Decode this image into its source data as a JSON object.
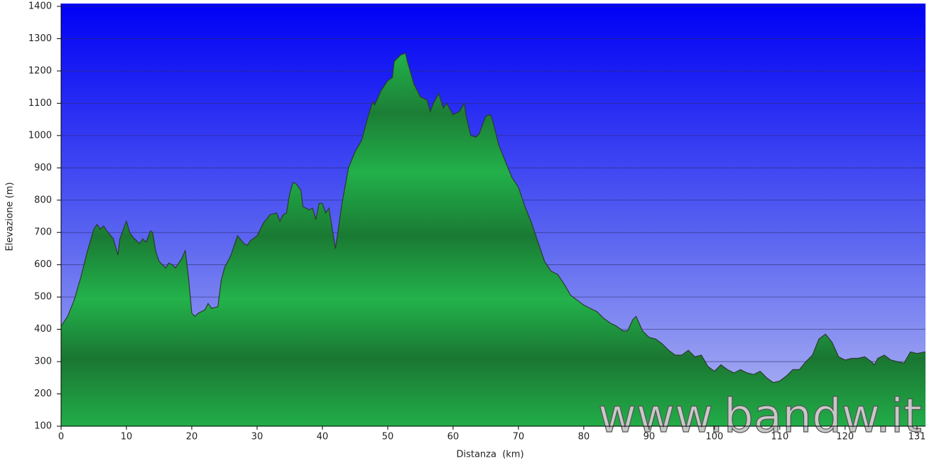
{
  "chart_data": {
    "type": "area",
    "x_label": "Distanza  (km)",
    "y_label": "Elevazione (m)",
    "watermark": "www.bandw.it",
    "xlim": [
      0,
      132.3
    ],
    "ylim": [
      100,
      1400
    ],
    "xticks": [
      0,
      10,
      20,
      30,
      40,
      50,
      60,
      70,
      80,
      90,
      100,
      110,
      120,
      131
    ],
    "yticks": [
      100,
      200,
      300,
      400,
      500,
      600,
      700,
      800,
      900,
      1000,
      1100,
      1200,
      1300,
      1400
    ],
    "grid": true,
    "x": [
      0,
      1,
      2,
      3,
      4,
      5,
      5.5,
      6,
      6.5,
      7,
      8,
      8.7,
      9,
      10,
      10.5,
      11,
      12,
      12.5,
      13,
      13.7,
      14,
      14.5,
      15,
      16,
      16.5,
      17,
      17.5,
      18,
      18.5,
      19,
      19.5,
      20,
      20.5,
      21,
      22,
      22.5,
      23,
      24,
      24.5,
      25,
      26,
      26.5,
      27,
      28,
      28.5,
      29,
      30,
      31,
      32,
      33,
      33.5,
      34,
      34.5,
      35,
      35.5,
      36,
      36.7,
      37,
      38,
      38.5,
      39,
      39.5,
      40,
      40.5,
      41,
      42,
      43,
      44,
      45,
      46,
      47,
      47.7,
      48,
      49,
      50,
      50.7,
      51,
      52,
      52.7,
      53,
      54,
      55,
      56,
      56.5,
      57,
      57.8,
      58.5,
      59,
      60,
      61,
      61.7,
      62,
      62.7,
      63.5,
      64,
      65,
      65.7,
      66,
      67,
      68,
      69,
      70,
      71,
      72,
      73,
      74,
      75,
      76,
      77,
      78,
      79,
      80,
      81,
      82,
      83,
      84,
      85,
      86,
      86.7,
      87.5,
      88,
      89,
      90,
      91,
      92,
      93,
      94,
      95,
      96,
      97,
      98,
      99,
      100,
      101,
      102,
      103,
      104,
      105,
      106,
      107,
      108,
      109,
      110,
      111,
      112,
      113,
      114,
      115,
      116,
      117,
      118,
      119,
      120,
      121,
      122,
      123,
      124,
      124.5,
      125,
      126,
      127,
      128,
      129,
      130,
      131,
      132.3
    ],
    "series": [
      {
        "name": "Elevazione",
        "color": "#1fa347",
        "values": [
          410,
          440,
          490,
          560,
          640,
          710,
          725,
          710,
          720,
          705,
          680,
          630,
          680,
          735,
          700,
          685,
          665,
          680,
          670,
          705,
          700,
          640,
          610,
          590,
          605,
          600,
          590,
          605,
          620,
          645,
          560,
          450,
          440,
          450,
          460,
          480,
          465,
          470,
          550,
          590,
          630,
          660,
          690,
          665,
          660,
          675,
          690,
          730,
          755,
          760,
          735,
          755,
          760,
          820,
          855,
          850,
          830,
          780,
          770,
          775,
          740,
          790,
          790,
          760,
          775,
          650,
          790,
          900,
          950,
          985,
          1060,
          1105,
          1095,
          1140,
          1170,
          1180,
          1230,
          1250,
          1255,
          1230,
          1160,
          1120,
          1110,
          1075,
          1100,
          1130,
          1085,
          1100,
          1065,
          1075,
          1100,
          1060,
          1000,
          995,
          1005,
          1060,
          1065,
          1050,
          970,
          920,
          870,
          840,
          780,
          730,
          670,
          610,
          580,
          570,
          540,
          505,
          490,
          475,
          465,
          455,
          435,
          420,
          410,
          395,
          395,
          430,
          440,
          395,
          375,
          370,
          355,
          335,
          320,
          320,
          335,
          315,
          320,
          285,
          270,
          290,
          275,
          265,
          275,
          265,
          260,
          270,
          250,
          235,
          240,
          255,
          275,
          275,
          300,
          320,
          370,
          385,
          360,
          315,
          305,
          310,
          310,
          315,
          300,
          290,
          310,
          320,
          305,
          300,
          295,
          330,
          325,
          330
        ]
      }
    ]
  }
}
